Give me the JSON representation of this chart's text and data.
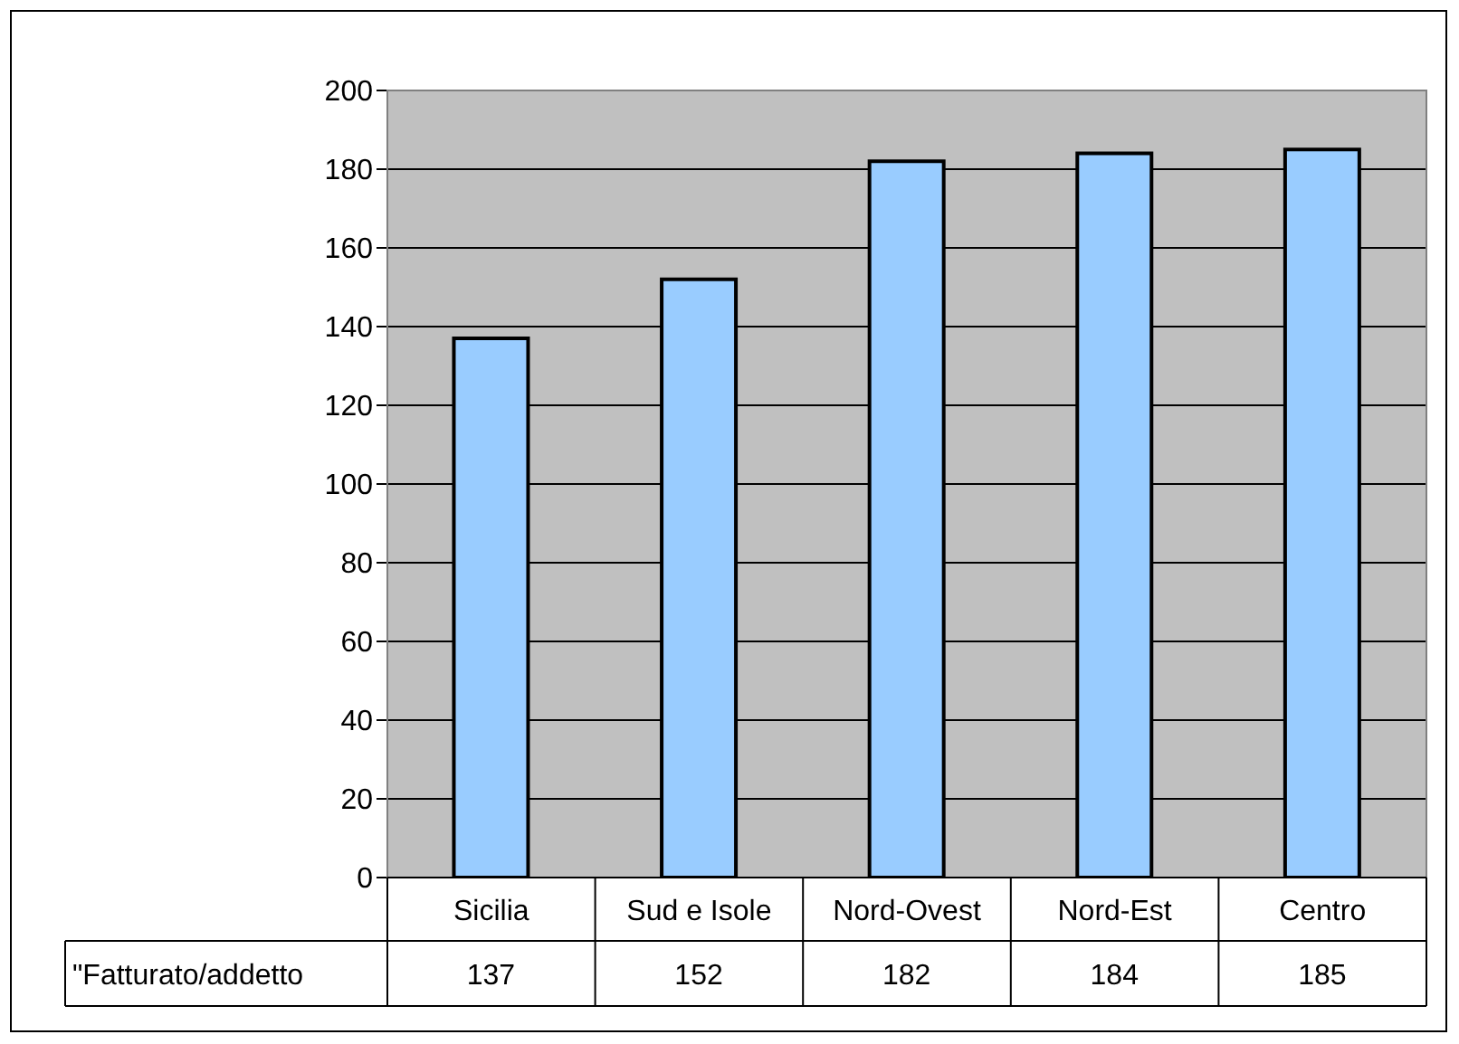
{
  "chart_data": {
    "type": "bar",
    "categories": [
      "Sicilia",
      "Sud e Isole",
      "Nord-Ovest",
      "Nord-Est",
      "Centro"
    ],
    "series": [
      {
        "name": "\"Fatturato/addetto",
        "color": "#99ccff",
        "values": [
          137,
          152,
          182,
          184,
          185
        ]
      }
    ],
    "ylim": [
      0,
      200
    ],
    "yticks": [
      0,
      20,
      40,
      60,
      80,
      100,
      120,
      140,
      160,
      180,
      200
    ],
    "grid": "y",
    "legend": "bottom left",
    "data_labels": true
  }
}
